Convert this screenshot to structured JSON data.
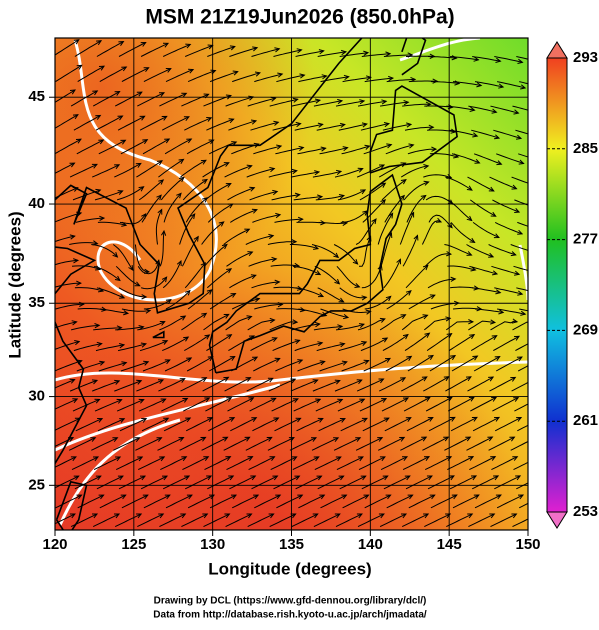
{
  "chart_data": {
    "type": "map",
    "title": "MSM 21Z19Jun2026 (850.0hPa)",
    "x_label": "Longitude (degrees)",
    "y_label": "Latitude  (degrees)",
    "projection": "mercator",
    "xlim": [
      120,
      150
    ],
    "ylim": [
      22.4,
      47.6
    ],
    "xticks": [
      120,
      125,
      130,
      135,
      140,
      145,
      150
    ],
    "yticks": [
      25,
      30,
      35,
      40,
      45
    ],
    "grid": true,
    "colorbar": {
      "lim": [
        253,
        293
      ],
      "ticks": [
        253,
        261,
        269,
        277,
        285,
        293
      ],
      "colors": [
        "#e020d0",
        "#1030d0",
        "#10c0e0",
        "#20c020",
        "#f0f020",
        "#f04020"
      ],
      "under_color": "#f070c8",
      "over_color": "#f07060"
    },
    "footer": [
      "Drawing by DCL (https://www.gfd-dennou.org/library/dcl/)",
      "Data from http://database.rish.kyoto-u.ac.jp/arch/jmadata/"
    ]
  }
}
